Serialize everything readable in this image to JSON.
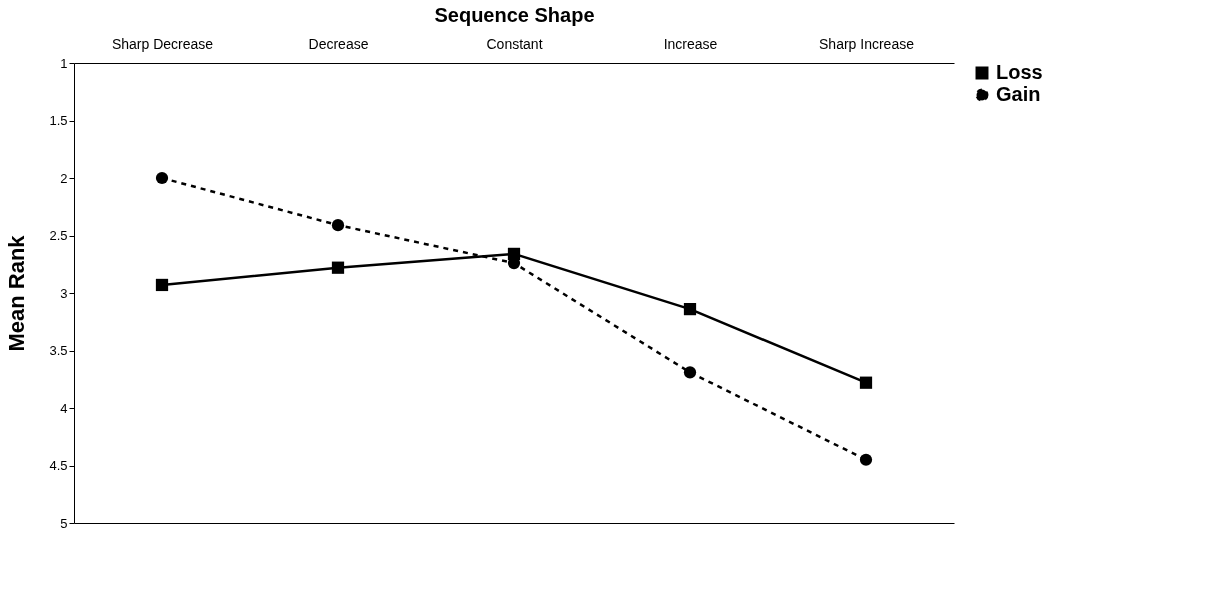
{
  "chart_data": {
    "type": "line",
    "xlabel": "Sequence Shape",
    "ylabel": "Mean Rank",
    "categories": [
      "Sharp Decrease",
      "Decrease",
      "Constant",
      "Increase",
      "Sharp Increase"
    ],
    "series": [
      {
        "name": "Loss",
        "color": "#000000",
        "marker": "square",
        "line_style": "solid",
        "values": [
          2.93,
          2.78,
          2.66,
          3.14,
          3.78
        ]
      },
      {
        "name": "Gain",
        "color": "#000000",
        "marker": "circle",
        "line_style": "dashed",
        "values": [
          2.0,
          2.41,
          2.74,
          3.69,
          4.45
        ]
      }
    ],
    "ylim": [
      5,
      1
    ],
    "yticks": [
      1,
      1.5,
      2,
      2.5,
      3,
      3.5,
      4,
      4.5,
      5
    ],
    "grid": false,
    "legend": "right"
  }
}
